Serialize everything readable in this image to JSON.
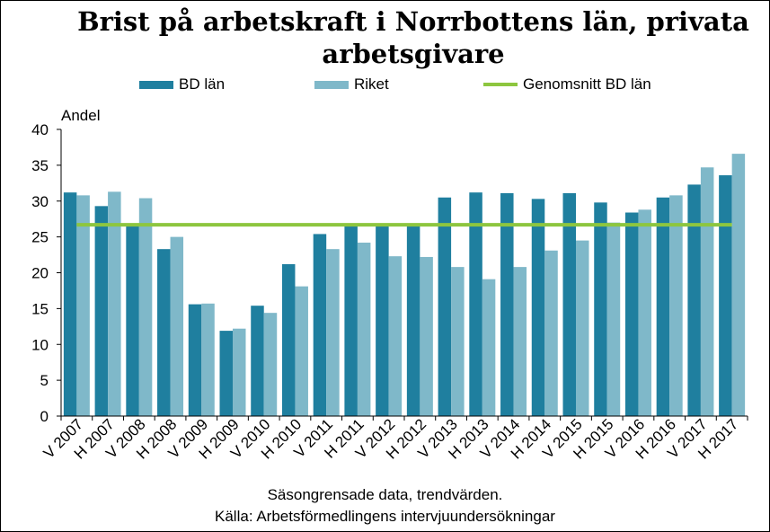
{
  "chart_data": {
    "type": "bar",
    "title": "Brist på arbetskraft i Norrbottens län, privata arbetsgivare",
    "ylabel": "Andel",
    "xlabel": "",
    "ylim": [
      0,
      40
    ],
    "yticks": [
      0,
      5,
      10,
      15,
      20,
      25,
      30,
      35,
      40
    ],
    "categories": [
      "V 2007",
      "H 2007",
      "V 2008",
      "H 2008",
      "V 2009",
      "H 2009",
      "V 2010",
      "H 2010",
      "V 2011",
      "H 2011",
      "V 2012",
      "H 2012",
      "V 2013",
      "H 2013",
      "V 2014",
      "H 2014",
      "V 2015",
      "H 2015",
      "V 2016",
      "H 2016",
      "V 2017",
      "H 2017"
    ],
    "series": [
      {
        "name": "BD län",
        "color": "#1f7f9f",
        "values": [
          31.2,
          29.3,
          26.6,
          23.3,
          15.6,
          11.9,
          15.4,
          21.2,
          25.4,
          26.6,
          26.6,
          26.6,
          30.5,
          31.2,
          31.1,
          30.3,
          31.1,
          29.8,
          28.4,
          30.5,
          32.3,
          33.6
        ]
      },
      {
        "name": "Riket",
        "color": "#7fb8c9",
        "values": [
          30.8,
          31.3,
          30.4,
          25.0,
          15.7,
          12.2,
          14.4,
          18.1,
          23.3,
          24.2,
          22.3,
          22.2,
          20.8,
          19.1,
          20.8,
          23.1,
          24.5,
          27.0,
          28.8,
          30.8,
          34.7,
          36.6
        ]
      }
    ],
    "reference_line": {
      "name": "Genomsnitt BD län",
      "value": 26.7,
      "color": "#8dc63f"
    },
    "legend_position": "top",
    "grid": false
  },
  "captions": {
    "line1": "Säsongrensade data, trendvärden.",
    "line2": "Källa: Arbetsförmedlingens intervjuundersökningar"
  }
}
